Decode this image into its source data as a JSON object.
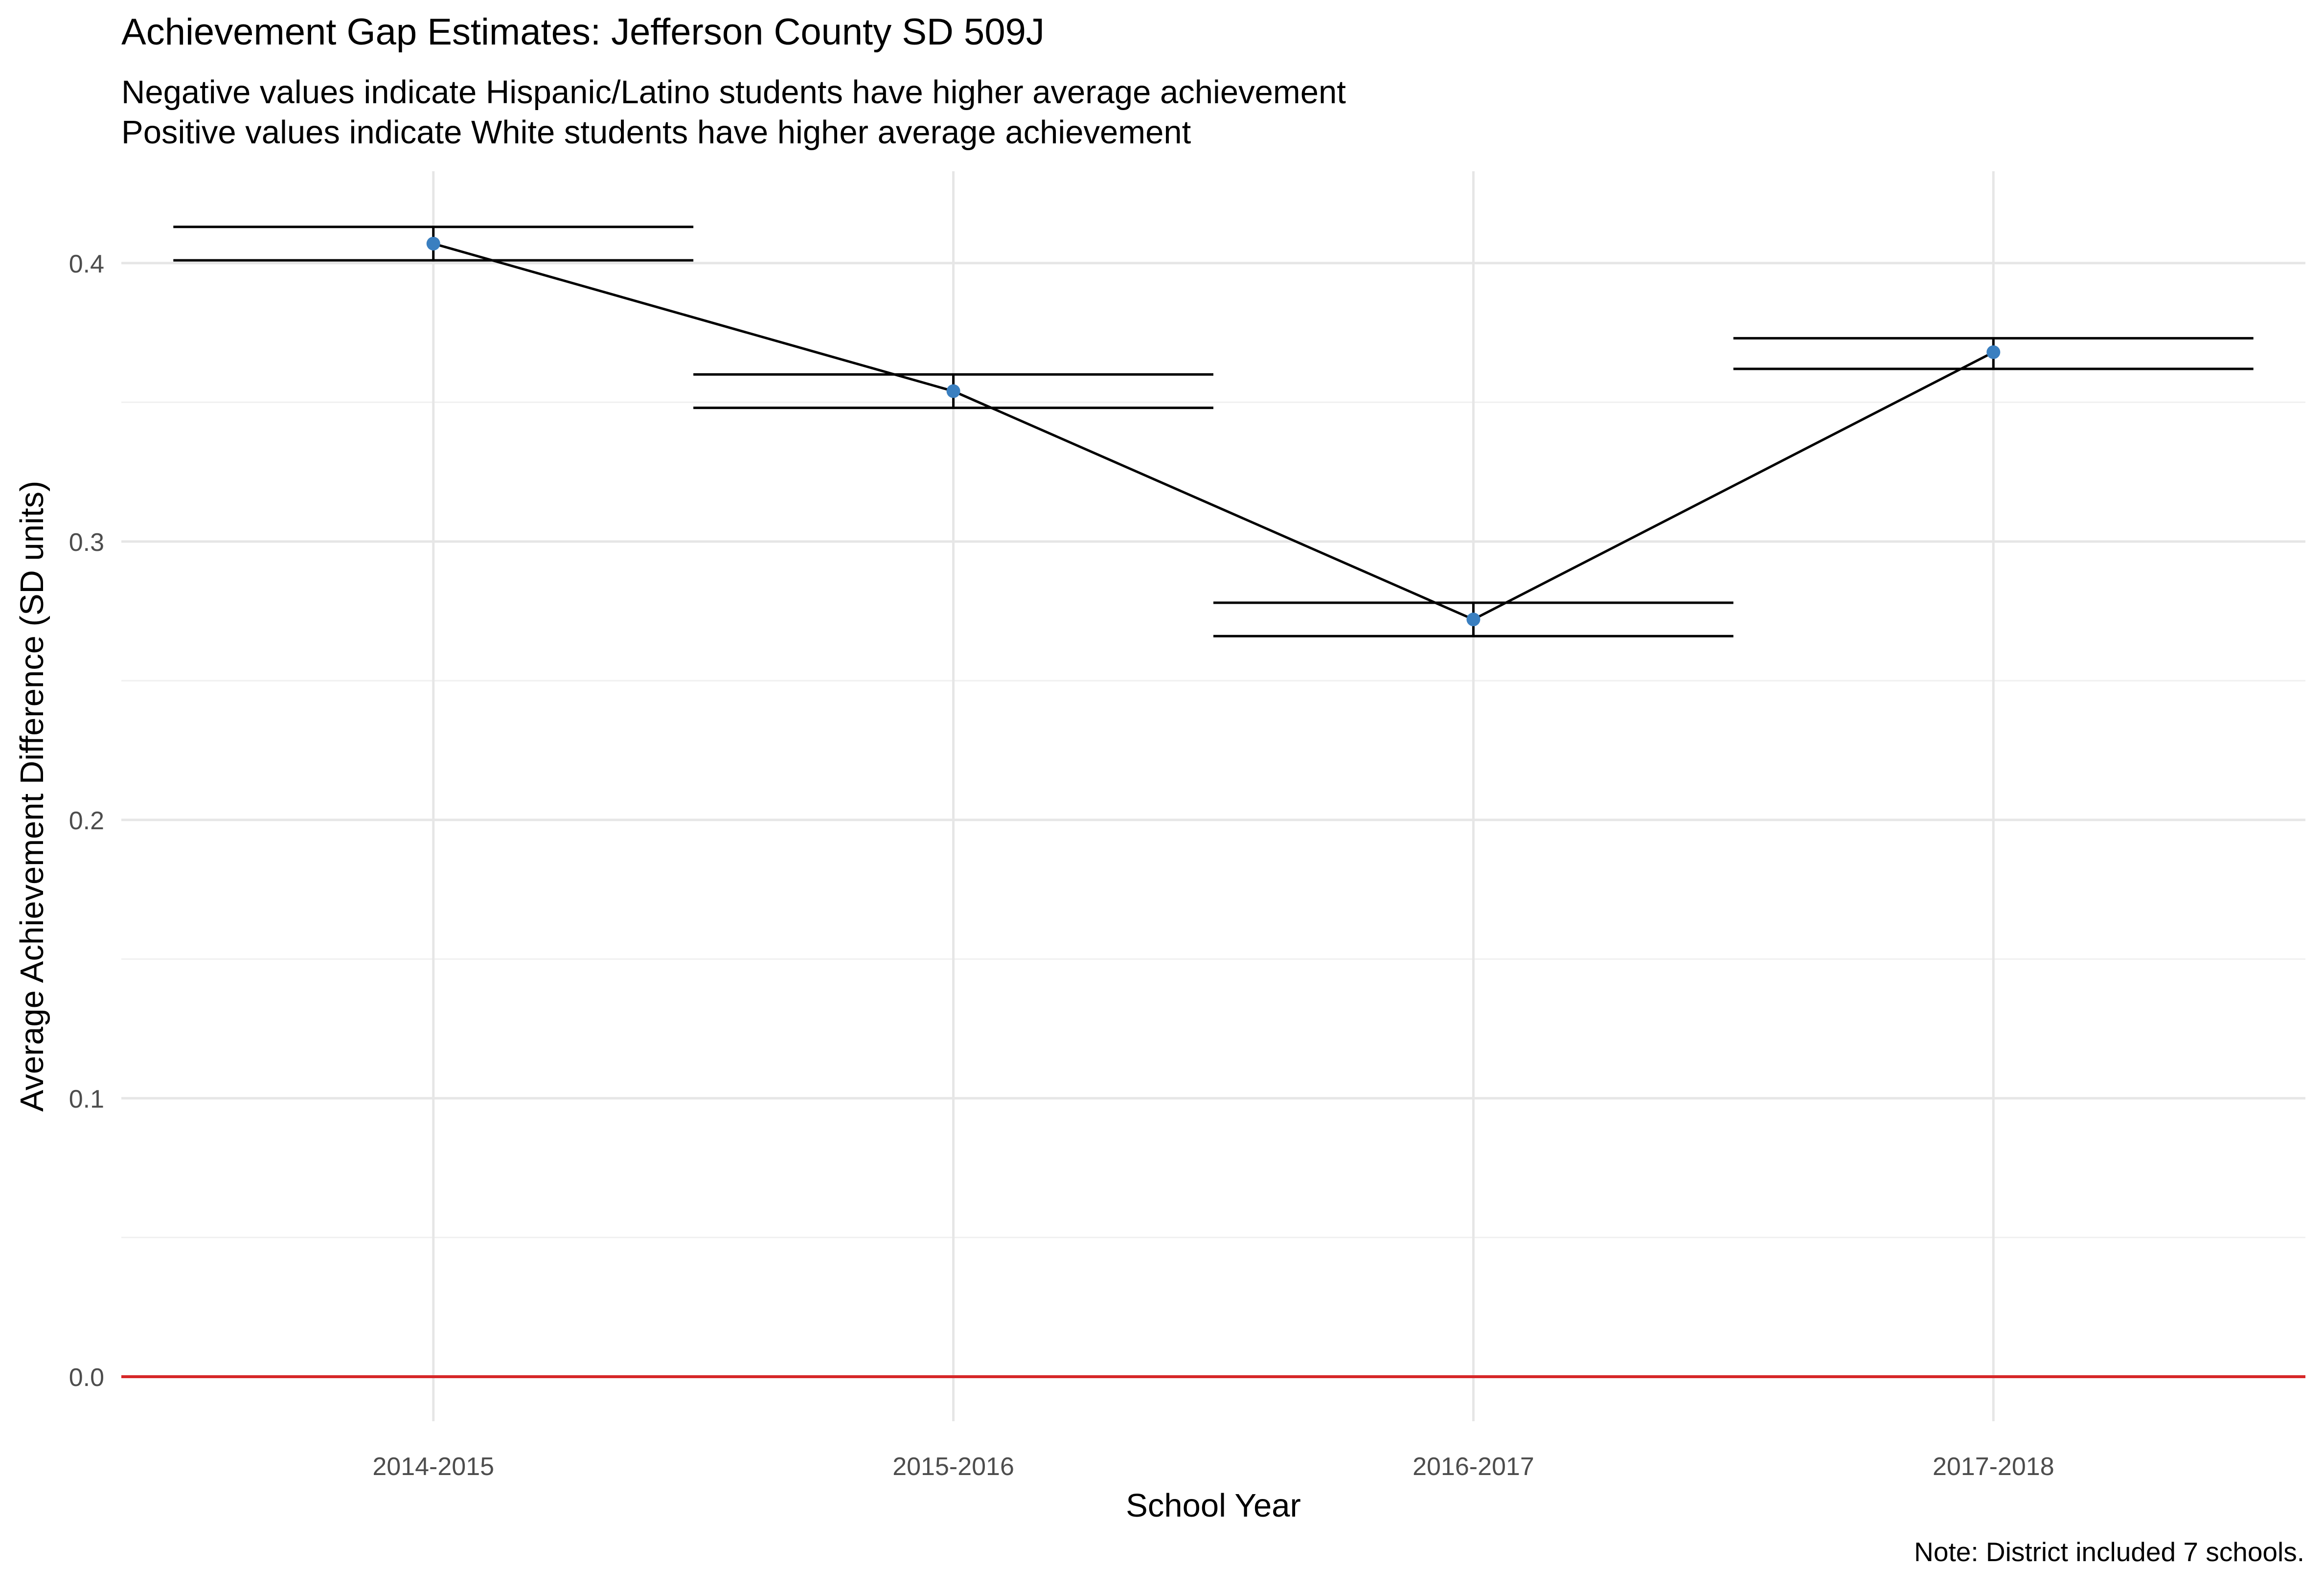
{
  "chart_data": {
    "type": "line",
    "title": "Achievement Gap Estimates: Jefferson County SD 509J",
    "subtitle": [
      "Negative values indicate Hispanic/Latino students have higher average achievement",
      "Positive values indicate White students have higher average achievement"
    ],
    "xlabel": "School Year",
    "ylabel": "Average Achievement Difference (SD units)",
    "caption": "Note: District included 7 schools.",
    "categories": [
      "2014-2015",
      "2015-2016",
      "2016-2017",
      "2017-2018"
    ],
    "series": [
      {
        "values": [
          0.407,
          0.354,
          0.272,
          0.368
        ],
        "lower": [
          0.401,
          0.348,
          0.266,
          0.362
        ],
        "upper": [
          0.413,
          0.36,
          0.278,
          0.373
        ],
        "point_color": "#3a7fc0",
        "line_color": "#000000"
      }
    ],
    "yticks": [
      0.0,
      0.1,
      0.2,
      0.3,
      0.4
    ],
    "ytick_labels": [
      "0.0",
      "0.1",
      "0.2",
      "0.3",
      "0.4"
    ],
    "ylim": [
      -0.016,
      0.433
    ],
    "reference_line": {
      "y": 0,
      "color": "#d62728"
    },
    "grid": true,
    "legend": "none"
  }
}
